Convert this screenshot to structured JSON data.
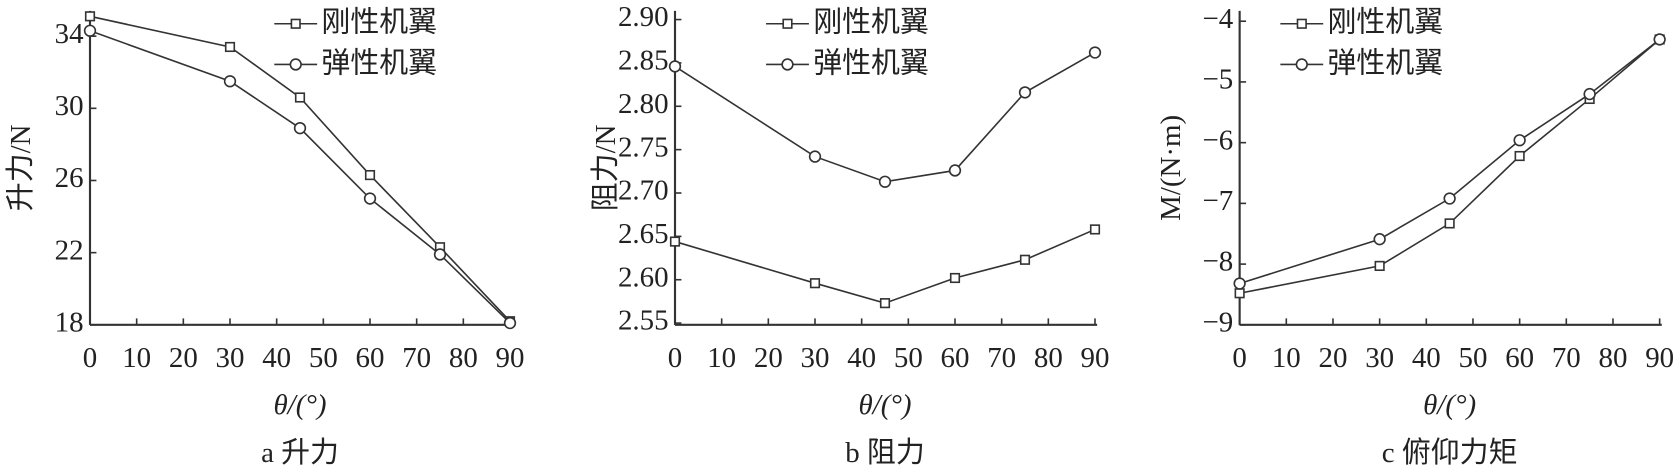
{
  "chart_data": [
    {
      "type": "line",
      "title": "a 升力",
      "xlabel": "θ/(°)",
      "ylabel": "升力/N",
      "x": [
        0,
        30,
        45,
        60,
        75,
        90
      ],
      "series": [
        {
          "name": "刚性机翼",
          "color": "#333333",
          "marker": "square",
          "values": [
            35.1,
            33.4,
            30.6,
            26.3,
            22.3,
            18.2
          ]
        },
        {
          "name": "弹性机翼",
          "color": "#333333",
          "marker": "circle",
          "values": [
            34.3,
            31.5,
            28.9,
            25.0,
            21.9,
            18.1
          ]
        }
      ],
      "xlim": [
        0,
        90
      ],
      "xticks": [
        0,
        10,
        20,
        30,
        40,
        50,
        60,
        70,
        80,
        90
      ],
      "ylim": [
        18,
        35.4
      ],
      "yticks": [
        18,
        22,
        26,
        30,
        34
      ],
      "legend": "upper right"
    },
    {
      "type": "line",
      "title": "b 阻力",
      "xlabel": "θ/(°)",
      "ylabel": "阻力/N",
      "x": [
        0,
        30,
        45,
        60,
        75,
        90
      ],
      "series": [
        {
          "name": "刚性机翼",
          "color": "#333333",
          "marker": "square",
          "values": [
            2.644,
            2.596,
            2.573,
            2.602,
            2.623,
            2.658
          ]
        },
        {
          "name": "弹性机翼",
          "color": "#333333",
          "marker": "circle",
          "values": [
            2.846,
            2.742,
            2.713,
            2.726,
            2.816,
            2.862
          ]
        }
      ],
      "xlim": [
        0,
        90
      ],
      "xticks": [
        0,
        10,
        20,
        30,
        40,
        50,
        60,
        70,
        80,
        90
      ],
      "ylim": [
        2.548,
        2.91
      ],
      "yticks": [
        2.55,
        {
          "value": 2.6,
          "label": "2.60"
        },
        2.65,
        {
          "value": 2.7,
          "label": "2.70"
        },
        2.75,
        {
          "value": 2.8,
          "label": "2.80"
        },
        2.85,
        {
          "value": 2.9,
          "label": "2.90"
        }
      ],
      "legend": "upper center"
    },
    {
      "type": "line",
      "title": "c 俯仰力矩",
      "xlabel": "θ/(°)",
      "ylabel": "M/(N·m)",
      "x": [
        0,
        30,
        45,
        60,
        75,
        90
      ],
      "series": [
        {
          "name": "刚性机翼",
          "color": "#333333",
          "marker": "square",
          "values": [
            -8.48,
            -8.03,
            -7.33,
            -6.22,
            -5.28,
            -4.3
          ]
        },
        {
          "name": "弹性机翼",
          "color": "#333333",
          "marker": "circle",
          "values": [
            -8.32,
            -7.59,
            -6.92,
            -5.96,
            -5.2,
            -4.3
          ]
        }
      ],
      "xlim": [
        0,
        90
      ],
      "xticks": [
        0,
        10,
        20,
        30,
        40,
        50,
        60,
        70,
        80,
        90
      ],
      "ylim": [
        -9,
        -3.83
      ],
      "yticks": [
        {
          "value": -9,
          "label": "−9"
        },
        {
          "value": -8,
          "label": "−8"
        },
        {
          "value": -7,
          "label": "−7"
        },
        {
          "value": -6,
          "label": "−6"
        },
        {
          "value": -5,
          "label": "−5"
        },
        {
          "value": -4,
          "label": "−4"
        }
      ],
      "legend": "upper left"
    }
  ]
}
